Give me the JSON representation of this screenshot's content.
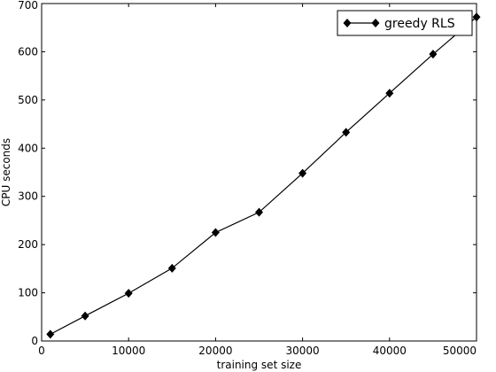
{
  "chart_data": {
    "type": "line",
    "title": "",
    "xlabel": "training set size",
    "ylabel": "CPU seconds",
    "xlim": [
      0,
      50000
    ],
    "ylim": [
      0,
      700
    ],
    "xticks": [
      0,
      10000,
      20000,
      30000,
      40000,
      50000
    ],
    "yticks": [
      0,
      100,
      200,
      300,
      400,
      500,
      600,
      700
    ],
    "grid": false,
    "legend_position": "top-right",
    "series": [
      {
        "name": "greedy RLS",
        "color": "#000000",
        "marker": "diamond",
        "x": [
          1000,
          5000,
          10000,
          15000,
          20000,
          25000,
          30000,
          35000,
          40000,
          45000,
          50000
        ],
        "y": [
          14,
          52,
          99,
          151,
          225,
          267,
          348,
          433,
          514,
          595,
          672
        ]
      }
    ]
  }
}
